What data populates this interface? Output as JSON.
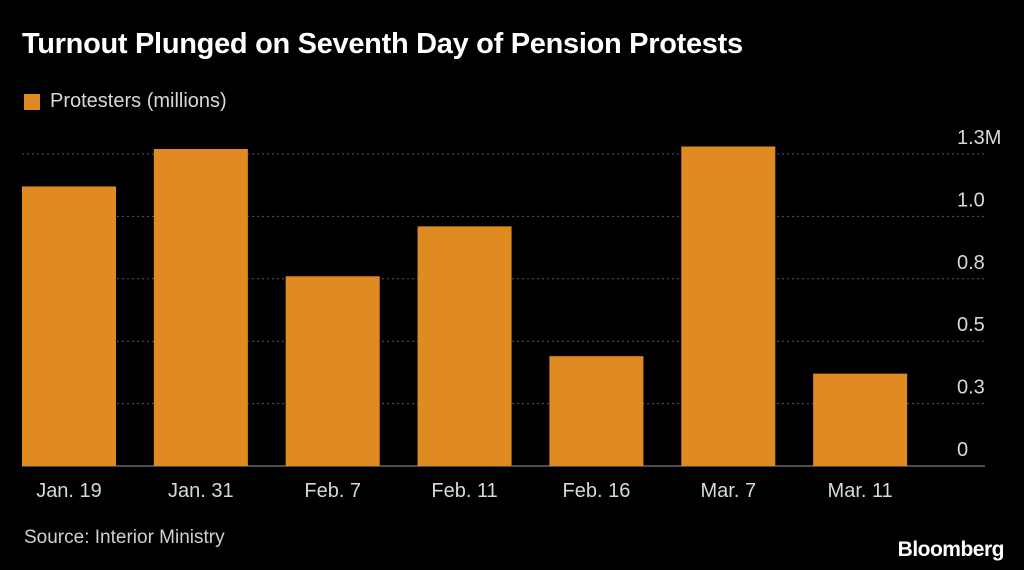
{
  "title": "Turnout Plunged on Seventh Day of Pension Protests",
  "legend": {
    "label": "Protesters (millions)",
    "color": "#e08b22"
  },
  "source": "Source: Interior Ministry",
  "brand": "Bloomberg",
  "chart_data": {
    "type": "bar",
    "title": "Turnout Plunged on Seventh Day of Pension Protests",
    "categories": [
      "Jan. 19",
      "Jan. 31",
      "Feb. 7",
      "Feb. 11",
      "Feb. 16",
      "Mar. 7",
      "Mar. 11"
    ],
    "series": [
      {
        "name": "Protesters (millions)",
        "values": [
          1.12,
          1.27,
          0.76,
          0.96,
          0.44,
          1.28,
          0.37
        ],
        "color": "#e08b22"
      }
    ],
    "yticks": [
      0,
      0.25,
      0.5,
      0.75,
      1.0,
      1.25
    ],
    "ytick_labels": [
      "0",
      "0.3",
      "0.5",
      "0.8",
      "1.0",
      "1.3M"
    ],
    "ylim": [
      0,
      1.25
    ],
    "xlabel": "",
    "ylabel": "",
    "grid": true,
    "legend_position": "top-left"
  }
}
